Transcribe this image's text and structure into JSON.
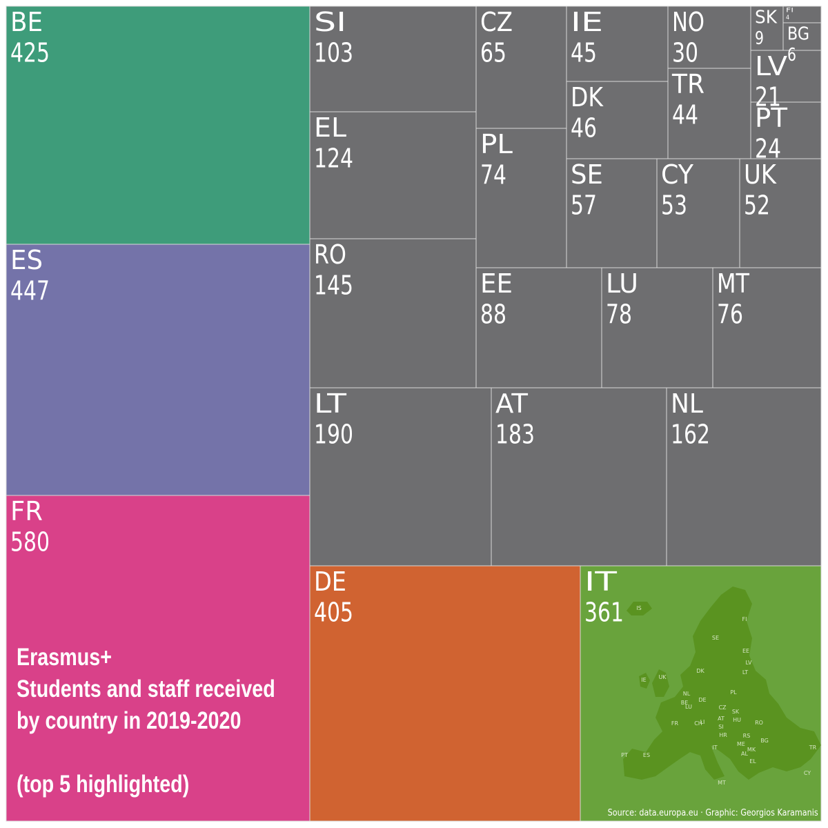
{
  "chart_data": {
    "type": "treemap",
    "title": "Erasmus+",
    "subtitle_lines": [
      "Students and staff received",
      "by country in 2019-2020"
    ],
    "note": "(top 5 highlighted)",
    "source": "Source: data.europa.eu · Graphic: Georgios Karamanis",
    "highlight_colors": {
      "FR": "#d94189",
      "ES": "#7473a9",
      "BE": "#3e9c7a",
      "DE": "#d06331",
      "IT": "#69a33c"
    },
    "other_color": "#6e6e70",
    "items": [
      {
        "country": "FR",
        "value": 580
      },
      {
        "country": "ES",
        "value": 447
      },
      {
        "country": "BE",
        "value": 425
      },
      {
        "country": "DE",
        "value": 405
      },
      {
        "country": "IT",
        "value": 361
      },
      {
        "country": "LT",
        "value": 190
      },
      {
        "country": "AT",
        "value": 183
      },
      {
        "country": "NL",
        "value": 162
      },
      {
        "country": "RO",
        "value": 145
      },
      {
        "country": "EL",
        "value": 124
      },
      {
        "country": "SI",
        "value": 103
      },
      {
        "country": "EE",
        "value": 88
      },
      {
        "country": "LU",
        "value": 78
      },
      {
        "country": "MT",
        "value": 76
      },
      {
        "country": "PL",
        "value": 74
      },
      {
        "country": "CZ",
        "value": 65
      },
      {
        "country": "SE",
        "value": 57
      },
      {
        "country": "CY",
        "value": 53
      },
      {
        "country": "UK",
        "value": 52
      },
      {
        "country": "DK",
        "value": 46
      },
      {
        "country": "IE",
        "value": 45
      },
      {
        "country": "TR",
        "value": 44
      },
      {
        "country": "NO",
        "value": 30
      },
      {
        "country": "PT",
        "value": 24
      },
      {
        "country": "LV",
        "value": 21
      },
      {
        "country": "SK",
        "value": 9
      },
      {
        "country": "BG",
        "value": 6
      },
      {
        "country": "FI",
        "value": 4
      }
    ],
    "map_labels": [
      "IS",
      "FI",
      "SE",
      "EE",
      "LV",
      "LT",
      "DK",
      "IE",
      "UK",
      "NL",
      "BE",
      "LU",
      "DE",
      "PL",
      "CZ",
      "SK",
      "AT",
      "HU",
      "FR",
      "CH",
      "LI",
      "SI",
      "HR",
      "RO",
      "RS",
      "ME",
      "MK",
      "AL",
      "BG",
      "EL",
      "IT",
      "PT",
      "ES",
      "MT",
      "TR",
      "CY"
    ]
  }
}
